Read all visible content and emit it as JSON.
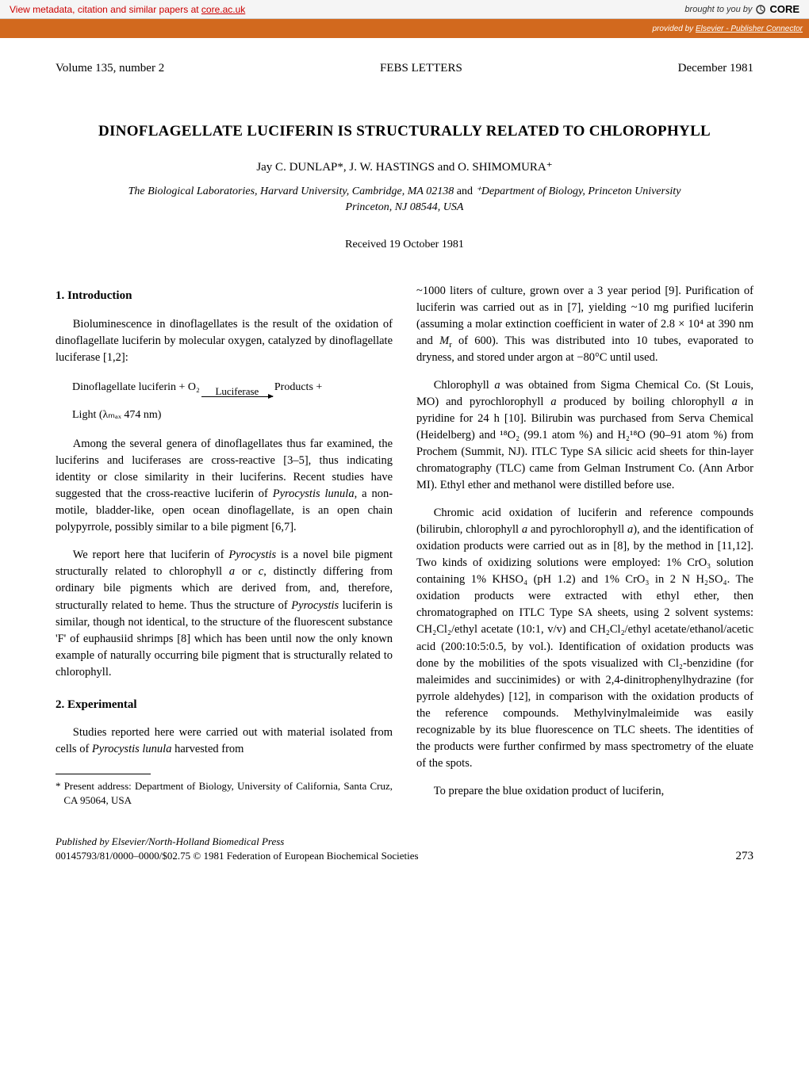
{
  "banner": {
    "left_prefix": "View metadata, citation and similar papers at ",
    "link_text": "core.ac.uk",
    "brought_by": "brought to you by",
    "logo_text": "CORE"
  },
  "orange_bar": {
    "prefix": "provided by ",
    "link_text": "Elsevier - Publisher Connector"
  },
  "header": {
    "volume": "Volume 135, number 2",
    "journal": "FEBS LETTERS",
    "date": "December 1981"
  },
  "title": "DINOFLAGELLATE LUCIFERIN IS STRUCTURALLY RELATED TO CHLOROPHYLL",
  "authors": "Jay C. DUNLAP*, J. W. HASTINGS and O. SHIMOMURA⁺",
  "affiliations_html": "The Biological Laboratories, Harvard University, Cambridge, MA 02138 <span style='font-style:normal'>and</span> ⁺Department of Biology, Princeton University<br>Princeton, NJ 08544, USA",
  "received": "Received 19 October 1981",
  "section1": {
    "heading": "1. Introduction",
    "p1": "Bioluminescence in dinoflagellates is the result of the oxidation of dinoflagellate luciferin by molecular oxygen, catalyzed by dinoflagellate luciferase [1,2]:",
    "eq_left": "Dinoflagellate luciferin + O₂",
    "eq_label": "Luciferase",
    "eq_right": "Products +",
    "eq_line2": "Light (λₘₐₓ 474 nm)",
    "p2_html": "Among the several genera of dinoflagellates thus far examined, the luciferins and luciferases are cross-reactive [3–5], thus indicating identity or close similarity in their luciferins. Recent studies have suggested that the cross-reactive luciferin of <i>Pyrocystis lunula</i>, a non-motile, bladder-like, open ocean dinoflagellate, is an open chain polypyrrole, possibly similar to a bile pigment [6,7].",
    "p3_html": "We report here that luciferin of <i>Pyrocystis</i> is a novel bile pigment structurally related to chlorophyll <i>a</i> or <i>c</i>, distinctly differing from ordinary bile pigments which are derived from, and, therefore, structurally related to heme. Thus the structure of <i>Pyrocystis</i> luciferin is similar, though not identical, to the structure of the fluorescent substance 'F' of euphausiid shrimps [8] which has been until now the only known example of naturally occurring bile pigment that is structurally related to chlorophyll."
  },
  "section2": {
    "heading": "2. Experimental",
    "p1_html": "Studies reported here were carried out with material isolated from cells of <i>Pyrocystis lunula</i> harvested from"
  },
  "footnote": "* Present address: Department of Biology, University of California, Santa Cruz, CA 95064, USA",
  "col2": {
    "p1_html": "~1000 liters of culture, grown over a 3 year period [9]. Purification of luciferin was carried out as in [7], yielding ~10 mg purified luciferin (assuming a molar extinction coefficient in water of 2.8 × 10⁴ at 390 nm and <i>M</i><sub>r</sub> of 600). This was distributed into 10 tubes, evaporated to dryness, and stored under argon at −80°C until used.",
    "p2_html": "Chlorophyll <i>a</i> was obtained from Sigma Chemical Co. (St Louis, MO) and pyrochlorophyll <i>a</i> produced by boiling chlorophyll <i>a</i> in pyridine for 24 h [10]. Bilirubin was purchased from Serva Chemical (Heidelberg) and ¹⁸O₂ (99.1 atom %) and H₂¹⁸O (90–91 atom %) from Prochem (Summit, NJ). ITLC Type SA silicic acid sheets for thin-layer chromatography (TLC) came from Gelman Instrument Co. (Ann Arbor MI). Ethyl ether and methanol were distilled before use.",
    "p3_html": "Chromic acid oxidation of luciferin and reference compounds (bilirubin, chlorophyll <i>a</i> and pyrochlorophyll <i>a</i>), and the identification of oxidation products were carried out as in [8], by the method in [11,12]. Two kinds of oxidizing solutions were employed: 1% CrO₃ solution containing 1% KHSO₄ (pH 1.2) and 1% CrO₃ in 2 N H₂SO₄. The oxidation products were extracted with ethyl ether, then chromatographed on ITLC Type SA sheets, using 2 solvent systems: CH₂Cl₂/ethyl acetate (10:1, v/v) and CH₂Cl₂/ethyl acetate/ethanol/acetic acid (200:10:5:0.5, by vol.). Identification of oxidation products was done by the mobilities of the spots visualized with Cl₂-benzidine (for maleimides and succinimides) or with 2,4-dinitrophenylhydrazine (for pyrrole aldehydes) [12], in comparison with the oxidation products of the reference compounds. Methylvinylmaleimide was easily recognizable by its blue fluorescence on TLC sheets. The identities of the products were further confirmed by mass spectrometry of the eluate of the spots.",
    "p4": "To prepare the blue oxidation product of luciferin,"
  },
  "footer": {
    "publisher": "Published by Elsevier/North-Holland Biomedical Press",
    "copyright": "00145793/81/0000–0000/$02.75 © 1981 Federation of European Biochemical Societies",
    "page": "273"
  },
  "colors": {
    "banner_bg": "#f5f5f5",
    "banner_link": "#cc0000",
    "orange": "#d2691e",
    "text": "#000000"
  }
}
